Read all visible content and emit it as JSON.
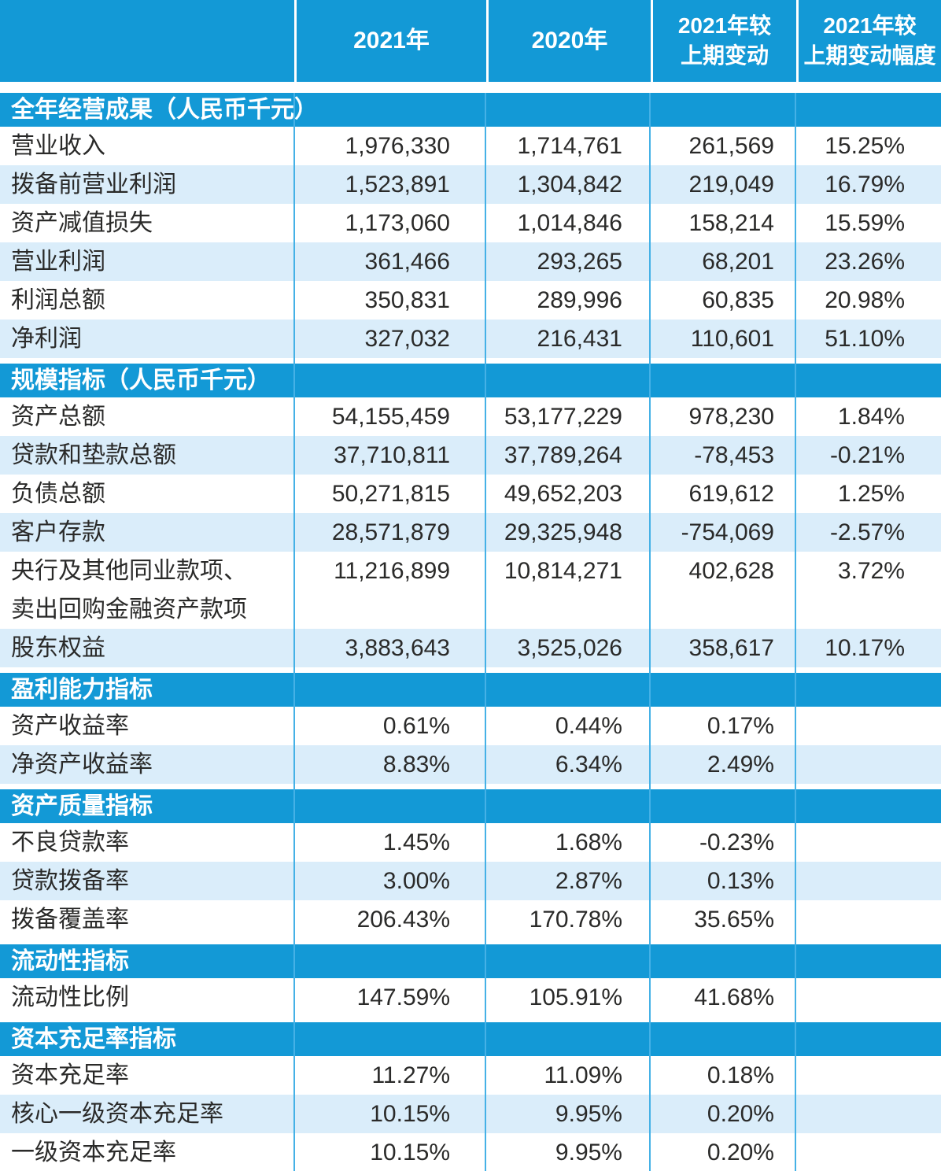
{
  "colors": {
    "header_blue": "#1399d6",
    "row_alt_blue": "#daedfa",
    "divider_blue": "#45b1e6",
    "text": "#2a2a29"
  },
  "header": {
    "col0": "",
    "col1": "2021年",
    "col2": "2020年",
    "col3": "2021年较\n上期变动",
    "col4": "2021年较\n上期变动幅度"
  },
  "sections": [
    {
      "title": "全年经营成果（人民币千元）",
      "rows": [
        {
          "label": "营业收入",
          "y2021": "1,976,330",
          "y2020": "1,714,761",
          "change": "261,569",
          "change_pct": "15.25%"
        },
        {
          "label": "拨备前营业利润",
          "y2021": "1,523,891",
          "y2020": "1,304,842",
          "change": "219,049",
          "change_pct": "16.79%"
        },
        {
          "label": "资产减值损失",
          "y2021": "1,173,060",
          "y2020": "1,014,846",
          "change": "158,214",
          "change_pct": "15.59%"
        },
        {
          "label": "营业利润",
          "y2021": "361,466",
          "y2020": "293,265",
          "change": "68,201",
          "change_pct": "23.26%"
        },
        {
          "label": "利润总额",
          "y2021": "350,831",
          "y2020": "289,996",
          "change": "60,835",
          "change_pct": "20.98%"
        },
        {
          "label": "净利润",
          "y2021": "327,032",
          "y2020": "216,431",
          "change": "110,601",
          "change_pct": "51.10%"
        }
      ]
    },
    {
      "title": "规模指标（人民币千元）",
      "rows": [
        {
          "label": "资产总额",
          "y2021": "54,155,459",
          "y2020": "53,177,229",
          "change": "978,230",
          "change_pct": "1.84%"
        },
        {
          "label": "贷款和垫款总额",
          "y2021": "37,710,811",
          "y2020": "37,789,264",
          "change": "-78,453",
          "change_pct": "-0.21%"
        },
        {
          "label": "负债总额",
          "y2021": "50,271,815",
          "y2020": "49,652,203",
          "change": "619,612",
          "change_pct": "1.25%"
        },
        {
          "label": "客户存款",
          "y2021": "28,571,879",
          "y2020": "29,325,948",
          "change": "-754,069",
          "change_pct": "-2.57%"
        },
        {
          "label": "央行及其他同业款项、\n卖出回购金融资产款项",
          "tall": true,
          "y2021": "11,216,899",
          "y2020": "10,814,271",
          "change": "402,628",
          "change_pct": "3.72%"
        },
        {
          "label": "股东权益",
          "y2021": "3,883,643",
          "y2020": "3,525,026",
          "change": "358,617",
          "change_pct": "10.17%"
        }
      ]
    },
    {
      "title": "盈利能力指标",
      "rows": [
        {
          "label": "资产收益率",
          "y2021": "0.61%",
          "y2020": "0.44%",
          "change": "0.17%",
          "change_pct": ""
        },
        {
          "label": "净资产收益率",
          "y2021": "8.83%",
          "y2020": "6.34%",
          "change": "2.49%",
          "change_pct": ""
        }
      ]
    },
    {
      "title": "资产质量指标",
      "rows": [
        {
          "label": "不良贷款率",
          "y2021": "1.45%",
          "y2020": "1.68%",
          "change": "-0.23%",
          "change_pct": ""
        },
        {
          "label": "贷款拨备率",
          "y2021": "3.00%",
          "y2020": "2.87%",
          "change": "0.13%",
          "change_pct": ""
        },
        {
          "label": "拨备覆盖率",
          "y2021": "206.43%",
          "y2020": "170.78%",
          "change": "35.65%",
          "change_pct": ""
        }
      ]
    },
    {
      "title": "流动性指标",
      "rows": [
        {
          "label": "流动性比例",
          "y2021": "147.59%",
          "y2020": "105.91%",
          "change": "41.68%",
          "change_pct": ""
        }
      ]
    },
    {
      "title": "资本充足率指标",
      "rows": [
        {
          "label": "资本充足率",
          "y2021": "11.27%",
          "y2020": "11.09%",
          "change": "0.18%",
          "change_pct": ""
        },
        {
          "label": "核心一级资本充足率",
          "y2021": "10.15%",
          "y2020": "9.95%",
          "change": "0.20%",
          "change_pct": ""
        },
        {
          "label": "一级资本充足率",
          "y2021": "10.15%",
          "y2020": "9.95%",
          "change": "0.20%",
          "change_pct": ""
        }
      ]
    }
  ]
}
